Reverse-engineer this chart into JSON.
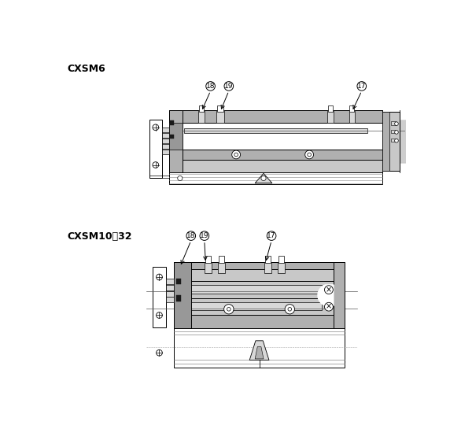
{
  "title1": "CXSM6",
  "title2": "CXSM10～32",
  "bg_color": "#ffffff",
  "lc": "#000000",
  "gray1": "#c8c8c8",
  "gray2": "#b0b0b0",
  "gray3": "#989898",
  "gray4": "#d8d8d8",
  "fig_width": 5.72,
  "fig_height": 5.59,
  "dpi": 100
}
